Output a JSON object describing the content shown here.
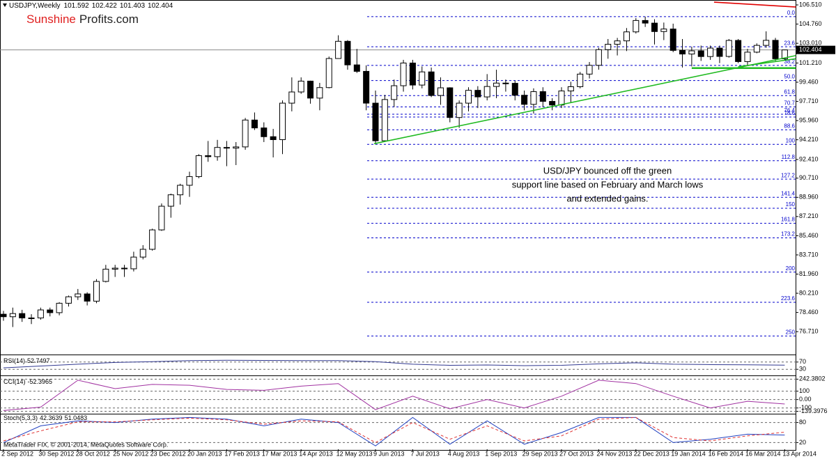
{
  "branding": {
    "name_1": "Sunshine",
    "name_2": "Profits.com"
  },
  "footer": "MetaTrader FIX, © 2001-2014, MetaQuotes Software Corp.",
  "chart_data": [
    {
      "type": "candlestick",
      "title": "USDJPY,Weekly",
      "categories": [
        "2 Sep 2012",
        null,
        null,
        null,
        "30 Sep 2012",
        null,
        null,
        null,
        "28 Oct 2012",
        null,
        null,
        null,
        "25 Nov 2012",
        null,
        null,
        null,
        "23 Dec 2012",
        null,
        null,
        null,
        "20 Jan 2013",
        null,
        null,
        null,
        "17 Feb 2013",
        null,
        null,
        null,
        "17 Mar 2013",
        null,
        null,
        null,
        "14 Apr 2013",
        null,
        null,
        null,
        "12 May 2013",
        null,
        null,
        null,
        "9 Jun 2013",
        null,
        null,
        null,
        "7 Jul 2013",
        null,
        null,
        null,
        "4 Aug 2013",
        null,
        null,
        null,
        "1 Sep 2013",
        null,
        null,
        null,
        "29 Sep 2013",
        null,
        null,
        null,
        "27 Oct 2013",
        null,
        null,
        null,
        "24 Nov 2013",
        null,
        null,
        null,
        "22 Dec 2013",
        null,
        null,
        null,
        "19 Jan 2014",
        null,
        null,
        null,
        "16 Feb 2014",
        null,
        null,
        null,
        "16 Mar 2014",
        null,
        null,
        null,
        "13 Apr 2014"
      ],
      "open": [
        78.3,
        78.07,
        78.36,
        77.96,
        77.96,
        78.69,
        78.44,
        79.3,
        79.89,
        80.15,
        79.49,
        81.29,
        82.41,
        82.5,
        82.44,
        83.51,
        84.22,
        85.99,
        88.15,
        89.19,
        90.06,
        90.85,
        92.76,
        92.67,
        93.51,
        93.45,
        93.56,
        96.01,
        95.29,
        94.49,
        94.22,
        97.55,
        98.57,
        99.56,
        98.01,
        98.97,
        101.62,
        103.19,
        101.04,
        100.45,
        97.55,
        94.12,
        97.88,
        99.14,
        101.21,
        99.2,
        100.4,
        98.25,
        98.95,
        96.24,
        97.55,
        98.72,
        98.12,
        99.07,
        99.38,
        99.36,
        98.27,
        97.44,
        98.6,
        97.71,
        97.38,
        98.66,
        99.05,
        100.2,
        101.0,
        102.43,
        102.92,
        103.23,
        104.05,
        105.09,
        104.85,
        104.08,
        104.31,
        102.36,
        102.03,
        102.32,
        101.8,
        102.57,
        101.81,
        103.27,
        101.34,
        102.2,
        102.82,
        103.28,
        101.592
      ],
      "high": [
        78.6,
        78.9,
        78.7,
        78.3,
        78.9,
        78.9,
        79.4,
        80.0,
        80.6,
        80.3,
        81.5,
        82.8,
        82.8,
        82.8,
        84.0,
        84.6,
        86.1,
        88.4,
        89.3,
        90.2,
        91.3,
        92.9,
        94.1,
        94.2,
        94.1,
        94.0,
        96.2,
        96.7,
        95.8,
        95.2,
        97.8,
        99.9,
        99.9,
        99.6,
        99.4,
        101.8,
        103.74,
        103.3,
        102.5,
        101.0,
        98.7,
        98.3,
        99.7,
        101.5,
        101.5,
        100.9,
        100.8,
        99.9,
        99.0,
        97.8,
        99.0,
        99.1,
        100.2,
        100.6,
        99.7,
        99.6,
        98.7,
        98.9,
        99.0,
        98.0,
        99.0,
        99.5,
        100.4,
        101.3,
        102.6,
        103.4,
        103.5,
        104.4,
        105.3,
        105.44,
        105.2,
        104.9,
        104.8,
        103.4,
        102.7,
        102.8,
        102.8,
        102.8,
        103.4,
        103.4,
        102.5,
        103.0,
        104.1,
        103.5,
        102.422
      ],
      "low": [
        77.7,
        77.13,
        77.6,
        77.4,
        77.8,
        78.1,
        78.2,
        79.0,
        79.6,
        79.1,
        79.3,
        81.2,
        81.7,
        81.7,
        82.2,
        83.3,
        84.1,
        85.9,
        87.1,
        88.3,
        89.0,
        90.7,
        92.2,
        92.3,
        91.8,
        91.9,
        93.3,
        95.1,
        94.0,
        92.6,
        92.9,
        96.8,
        98.4,
        97.5,
        96.9,
        98.9,
        101.6,
        100.6,
        100.3,
        96.9,
        93.79,
        94.1,
        97.2,
        98.6,
        98.8,
        98.9,
        98.1,
        97.4,
        95.8,
        95.3,
        96.8,
        97.1,
        97.8,
        98.0,
        98.6,
        97.8,
        96.9,
        96.6,
        97.2,
        96.9,
        97.1,
        97.6,
        98.9,
        99.8,
        100.6,
        101.6,
        101.9,
        102.3,
        103.9,
        104.5,
        102.9,
        103.3,
        102.2,
        100.8,
        100.9,
        101.4,
        101.5,
        101.2,
        101.7,
        101.2,
        101.0,
        102.1,
        102.6,
        101.4,
        101.403
      ],
      "close": [
        78.07,
        78.36,
        77.96,
        77.96,
        78.69,
        78.44,
        79.3,
        79.89,
        80.15,
        79.49,
        81.29,
        82.41,
        82.5,
        82.44,
        83.51,
        84.22,
        85.99,
        88.15,
        89.19,
        90.06,
        90.85,
        92.76,
        92.67,
        93.51,
        93.45,
        93.56,
        96.01,
        95.29,
        94.49,
        94.22,
        97.55,
        98.57,
        99.56,
        98.01,
        98.97,
        101.62,
        103.19,
        101.04,
        100.45,
        97.55,
        94.12,
        97.88,
        99.14,
        101.21,
        99.2,
        100.4,
        98.25,
        98.95,
        96.24,
        97.55,
        98.72,
        98.12,
        99.07,
        99.38,
        99.36,
        98.27,
        97.44,
        98.6,
        97.71,
        97.38,
        98.66,
        99.05,
        100.2,
        101.0,
        102.43,
        102.92,
        103.23,
        104.05,
        105.09,
        104.85,
        104.08,
        104.31,
        102.36,
        102.03,
        102.32,
        101.8,
        102.57,
        101.81,
        103.27,
        101.34,
        102.2,
        102.82,
        103.28,
        101.6,
        102.404
      ],
      "up_color": "#ffffff",
      "down_color": "#000000",
      "ylim": [
        74.75,
        106.83
      ],
      "yticks": [
        {
          "value": 106.51,
          "label": "106.510"
        },
        {
          "value": 104.76,
          "label": "104.760"
        },
        {
          "value": 103.01,
          "label": "103.010"
        },
        {
          "value": 101.21,
          "label": "101.210"
        },
        {
          "value": 99.46,
          "label": "99.460"
        },
        {
          "value": 97.71,
          "label": "97.710"
        },
        {
          "value": 95.96,
          "label": "95.960"
        },
        {
          "value": 94.21,
          "label": "94.210"
        },
        {
          "value": 92.41,
          "label": "92.410"
        },
        {
          "value": 90.71,
          "label": "90.710"
        },
        {
          "value": 88.96,
          "label": "88.960"
        },
        {
          "value": 87.21,
          "label": "87.210"
        },
        {
          "value": 85.46,
          "label": "85.460"
        },
        {
          "value": 83.71,
          "label": "83.710"
        },
        {
          "value": 81.96,
          "label": "81.960"
        },
        {
          "value": 80.21,
          "label": "80.210"
        },
        {
          "value": 78.46,
          "label": "78.460"
        },
        {
          "value": 76.71,
          "label": "76.710"
        }
      ],
      "grid": false,
      "fib": {
        "high": 105.44,
        "low": 93.79,
        "color": "#0000cc",
        "levels": [
          {
            "value": 0,
            "label": "0.0"
          },
          23.6,
          38.2,
          {
            "value": 50,
            "label": "50.0"
          },
          61.8,
          70.7,
          76.4,
          78.6,
          88.6,
          100,
          112.8,
          127.2,
          141.4,
          150,
          161.8,
          173.2,
          200,
          223.6,
          250
        ]
      },
      "lines": [
        {
          "color": "#e00000",
          "x": [
            76.4,
            85.2
          ],
          "y": [
            106.76,
            106.32
          ]
        },
        {
          "color": "#22bb22",
          "x": [
            39.85,
            85.2
          ],
          "y": [
            93.85,
            101.89
          ]
        },
        {
          "color": "#22bb22",
          "x": [
            79,
            85.2
          ],
          "y": [
            100.87,
            101.6
          ]
        },
        {
          "color": "#22bb22",
          "x": [
            74,
            85.2
          ],
          "y": [
            100.75,
            100.75
          ]
        }
      ],
      "annotation": [
        "USD/JPY bounced off the green",
        "support line based on February and March lows",
        "and extended gains."
      ]
    },
    {
      "type": "line",
      "title": "RSI(14)",
      "x": [
        0,
        4,
        8,
        12,
        16,
        20,
        24,
        28,
        32,
        36,
        40,
        44,
        48,
        52,
        56,
        60,
        64,
        68,
        72,
        76,
        80,
        84
      ],
      "series": [
        {
          "color": "#303890",
          "style": "solid",
          "values": [
            38,
            48,
            58,
            68,
            72,
            78,
            80,
            79,
            78,
            78,
            72,
            58,
            52,
            54,
            50,
            52,
            60,
            66,
            58,
            56,
            55,
            52.7497
          ]
        }
      ],
      "ylim": [
        0,
        100
      ],
      "yticks": [
        70,
        30
      ],
      "grid": true
    },
    {
      "type": "line",
      "title": "CCI(14)",
      "x": [
        0,
        4,
        8,
        12,
        16,
        20,
        24,
        28,
        32,
        36,
        40,
        44,
        48,
        52,
        56,
        60,
        64,
        68,
        72,
        76,
        80,
        84
      ],
      "series": [
        {
          "color": "#a030a0",
          "style": "solid",
          "values": [
            -130,
            -90,
            230,
            130,
            180,
            170,
            120,
            110,
            160,
            190,
            -120,
            40,
            -110,
            0,
            -100,
            40,
            230,
            190,
            40,
            -100,
            -20,
            -52.3965
          ]
        }
      ],
      "ylim": [
        -160,
        262
      ],
      "yticks": [
        242.3802,
        100,
        {
          "value": 0,
          "label": "0.00"
        },
        -100,
        -139.3976
      ],
      "grid": true
    },
    {
      "type": "line",
      "title": "Stoch(5,3,3)",
      "x": [
        0,
        4,
        8,
        12,
        16,
        20,
        24,
        28,
        32,
        36,
        40,
        44,
        48,
        52,
        56,
        60,
        64,
        68,
        72,
        76,
        80,
        84
      ],
      "series": [
        {
          "color": "#2040c0",
          "style": "solid",
          "values": [
            20,
            70,
            85,
            80,
            90,
            95,
            90,
            70,
            90,
            80,
            10,
            95,
            15,
            85,
            15,
            50,
            95,
            95,
            20,
            30,
            45,
            42.3639
          ]
        },
        {
          "color": "#e03030",
          "style": "dashed",
          "values": [
            25,
            55,
            82,
            82,
            88,
            93,
            88,
            75,
            85,
            82,
            20,
            80,
            30,
            70,
            25,
            40,
            90,
            95,
            35,
            25,
            40,
            51.0483
          ]
        }
      ],
      "ylim": [
        0,
        100
      ],
      "yticks": [
        80,
        20
      ],
      "grid": true
    }
  ]
}
